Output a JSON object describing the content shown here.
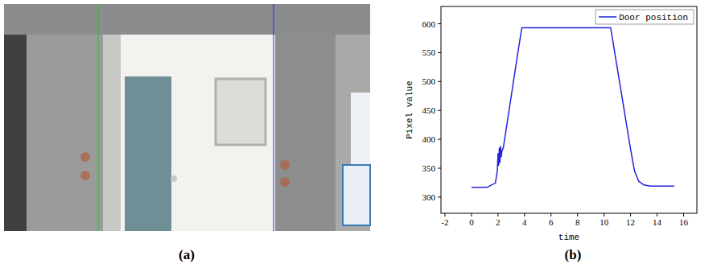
{
  "panel_labels": [
    "(a)",
    "(b)"
  ],
  "chart_data": {
    "type": "line",
    "x_label": "time",
    "y_label": "Pixel value",
    "x": [
      0,
      1.2,
      1.5,
      1.8,
      1.95,
      2.0,
      2.05,
      2.1,
      2.15,
      2.2,
      2.25,
      2.3,
      2.4,
      2.6,
      3.0,
      3.5,
      3.8,
      10.5,
      11,
      11.5,
      12,
      12.3,
      12.6,
      13,
      13.5,
      15.3
    ],
    "series": [
      {
        "name": "Door position",
        "color": "#2323e0",
        "values": [
          317,
          317,
          321,
          324,
          345,
          375,
          355,
          385,
          360,
          388,
          370,
          380,
          385,
          415,
          475,
          550,
          593,
          593,
          523,
          453,
          383,
          345,
          328,
          321,
          319,
          319
        ]
      }
    ],
    "xlim": [
      -2.3,
      17
    ],
    "xticks": [
      -2,
      0,
      2,
      4,
      6,
      8,
      10,
      12,
      14,
      16
    ],
    "ylim": [
      272,
      630
    ],
    "yticks": [
      300,
      350,
      400,
      450,
      500,
      550,
      600
    ],
    "grid": false,
    "legend": "upper right"
  }
}
